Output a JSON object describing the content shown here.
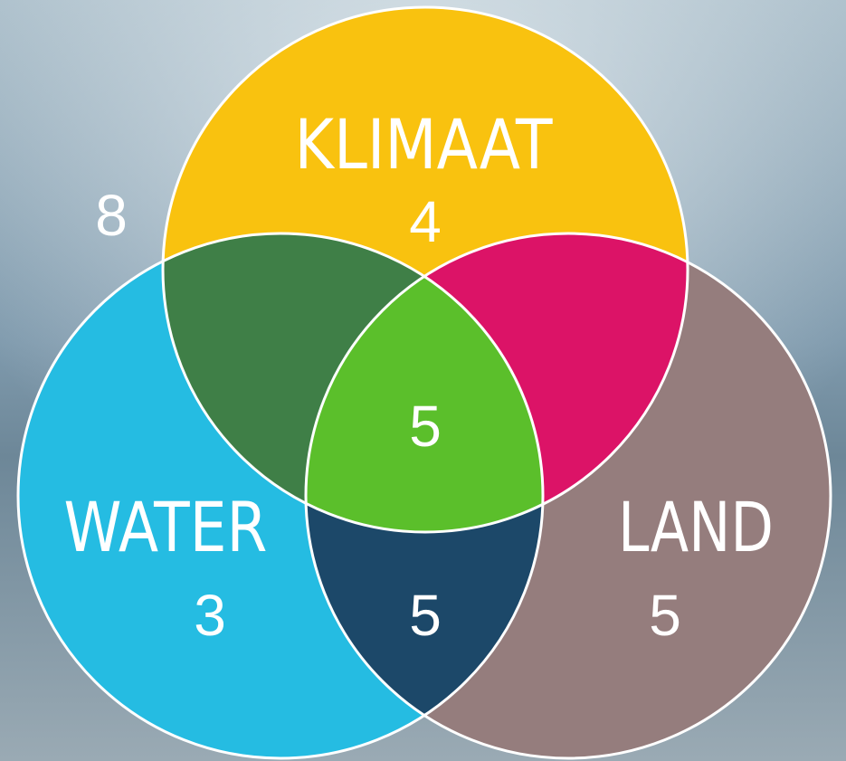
{
  "outside": {
    "value": 8
  },
  "sets": [
    {
      "label": "KLIMAAT",
      "value": 4
    },
    {
      "label": "WATER",
      "value": 3
    },
    {
      "label": "LAND",
      "value": 5
    }
  ],
  "overlaps": {
    "all_three": 5,
    "water_land": 5
  }
}
